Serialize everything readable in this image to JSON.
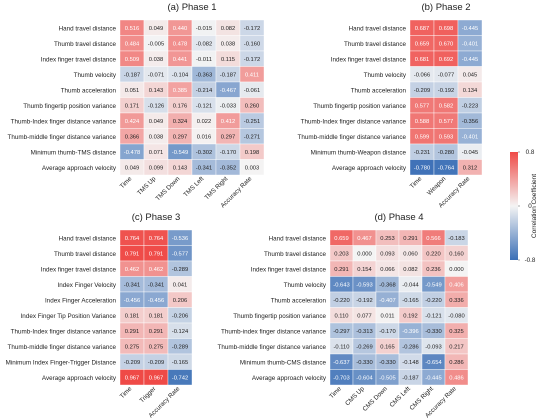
{
  "chart_data": [
    {
      "type": "heatmap",
      "panel_label": "(a)",
      "title": "Phase 1",
      "rows": [
        "Hand travel distance",
        "Thumb travel distance",
        "Index finger travel distance",
        "Thumb velocity",
        "Thumb acceleration",
        "Thumb fingertip position variance",
        "Thumb-Index finger distance variance",
        "Thumb-middle finger distance variance",
        "Minimum thumb-TMS distance",
        "Average approach velocity"
      ],
      "columns": [
        "Time",
        "TMS Up",
        "TMS Down",
        "TMS Left",
        "TMS Right",
        "Accuracy Rate"
      ],
      "values": [
        [
          0.516,
          0.049,
          0.44,
          -0.015,
          0.082,
          -0.172
        ],
        [
          0.484,
          -0.005,
          0.478,
          -0.082,
          0.038,
          -0.16
        ],
        [
          0.509,
          0.038,
          0.441,
          -0.011,
          0.115,
          -0.172
        ],
        [
          -0.187,
          -0.071,
          -0.104,
          -0.363,
          -0.187,
          0.411
        ],
        [
          0.051,
          0.143,
          0.385,
          -0.214,
          -0.467,
          -0.061
        ],
        [
          0.171,
          -0.126,
          0.176,
          -0.121,
          -0.033,
          0.26
        ],
        [
          0.424,
          0.049,
          0.324,
          0.022,
          0.412,
          -0.251
        ],
        [
          0.366,
          0.038,
          0.297,
          0.016,
          0.297,
          -0.271
        ],
        [
          -0.478,
          0.071,
          -0.549,
          -0.302,
          -0.17,
          0.198
        ],
        [
          0.049,
          0.099,
          0.143,
          -0.341,
          -0.352,
          0.003
        ]
      ]
    },
    {
      "type": "heatmap",
      "panel_label": "(b)",
      "title": "Phase 2",
      "rows": [
        "Hand travel distance",
        "Thumb travel distance",
        "Index finger travel distance",
        "Thumb velocity",
        "Thumb acceleration",
        "Thumb fingertip position variance",
        "Thumb-Index finger distance variance",
        "Thumb-middle finger distance variance",
        "Minimum thumb-Weapon distance",
        "Average approach velocity"
      ],
      "columns": [
        "Time",
        "Weapon",
        "Accuracy Rate"
      ],
      "values": [
        [
          0.687,
          0.698,
          -0.445
        ],
        [
          0.659,
          0.67,
          -0.401
        ],
        [
          0.681,
          0.692,
          -0.445
        ],
        [
          -0.066,
          -0.077,
          0.045
        ],
        [
          -0.209,
          -0.192,
          0.134
        ],
        [
          0.577,
          0.582,
          -0.223
        ],
        [
          0.588,
          0.577,
          -0.356
        ],
        [
          0.599,
          0.593,
          -0.401
        ],
        [
          -0.231,
          -0.28,
          -0.045
        ],
        [
          -0.78,
          -0.764,
          0.312
        ]
      ]
    },
    {
      "type": "heatmap",
      "panel_label": "(c)",
      "title": "Phase 3",
      "rows": [
        "Hand travel distance",
        "Thumb travel distance",
        "Index finger travel distance",
        "Index Finger Velocity",
        "Index Finger Acceleration",
        "Index Finger Tip Position Variance",
        "Thumb-Index finger distance variance",
        "Thumb-middle finger distance variance",
        "Minimum Index Finger-Trigger Distance",
        "Average approach velocity"
      ],
      "columns": [
        "Time",
        "Trigger",
        "Accuracy Rate"
      ],
      "values": [
        [
          0.764,
          0.764,
          -0.536
        ],
        [
          0.791,
          0.791,
          -0.577
        ],
        [
          0.462,
          0.462,
          -0.289
        ],
        [
          -0.341,
          -0.341,
          0.041
        ],
        [
          -0.456,
          -0.456,
          0.206
        ],
        [
          0.181,
          0.181,
          -0.206
        ],
        [
          0.291,
          0.291,
          -0.124
        ],
        [
          0.275,
          0.275,
          -0.289
        ],
        [
          -0.209,
          -0.209,
          -0.165
        ],
        [
          0.967,
          0.967,
          -0.742
        ]
      ]
    },
    {
      "type": "heatmap",
      "panel_label": "(d)",
      "title": "Phase 4",
      "rows": [
        "Hand travel distance",
        "Thumb travel distance",
        "Index finger travel distance",
        "Thumb velocity",
        "Thumb acceleration",
        "Thumb fingertip position variance",
        "Thumb-index finger distance variance",
        "Thumb-middle finger distance variance",
        "Minimum thumb-CMS distance",
        "Average approach velocity"
      ],
      "columns": [
        "Time",
        "CMS Up",
        "CMS Down",
        "CMS Left",
        "CMS Right",
        "Accuracy Rate"
      ],
      "values": [
        [
          0.659,
          0.467,
          0.253,
          0.291,
          0.566,
          -0.183
        ],
        [
          0.203,
          0.0,
          0.093,
          0.06,
          0.22,
          0.16
        ],
        [
          0.291,
          0.154,
          0.066,
          0.082,
          0.236,
          0.0
        ],
        [
          -0.643,
          -0.593,
          -0.368,
          -0.044,
          -0.549,
          0.406
        ],
        [
          -0.22,
          -0.192,
          -0.407,
          -0.165,
          -0.22,
          0.336
        ],
        [
          0.11,
          0.077,
          0.011,
          0.192,
          -0.121,
          -0.08
        ],
        [
          -0.297,
          -0.313,
          -0.17,
          -0.396,
          -0.33,
          0.325
        ],
        [
          -0.11,
          -0.269,
          0.165,
          -0.286,
          -0.093,
          0.217
        ],
        [
          -0.637,
          -0.33,
          -0.33,
          -0.148,
          -0.654,
          0.286
        ],
        [
          -0.703,
          -0.604,
          -0.505,
          -0.187,
          -0.445,
          0.486
        ]
      ]
    }
  ],
  "colorbar": {
    "label": "Correlation Coefficient",
    "ticks": [
      0.8,
      0,
      -0.8
    ],
    "tick_labels": [
      "0.8",
      "0",
      "-0.8"
    ],
    "vmin": -0.8,
    "vmax": 0.8,
    "colors": {
      "negative": "#3b6fb6",
      "neutral": "#f4f4f4",
      "positive": "#ef4a47"
    }
  }
}
